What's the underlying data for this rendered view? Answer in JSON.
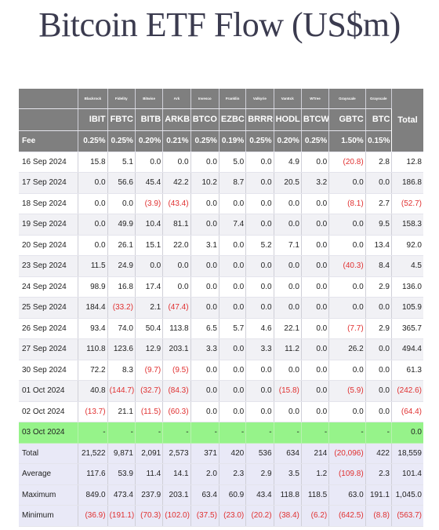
{
  "title": "Bitcoin ETF Flow (US$m)",
  "colors": {
    "header_bg": "#7f7f7f",
    "negative": "#e03030",
    "highlight_row": "#96f38a",
    "stats_bg": "#e9e9f7"
  },
  "header": {
    "issuers": [
      "Blackrock",
      "Fidelity",
      "Bitwise",
      "Ark",
      "Invesco",
      "Franklin",
      "Valkyrie",
      "VanEck",
      "WTree",
      "Grayscale",
      "Grayscale"
    ],
    "total_label": "Total",
    "tickers": [
      "IBIT",
      "FBTC",
      "BITB",
      "ARKB",
      "BTCO",
      "EZBC",
      "BRRR",
      "HODL",
      "BTCW",
      "GBTC",
      "BTC"
    ],
    "fee_label": "Fee",
    "fees": [
      "0.25%",
      "0.25%",
      "0.20%",
      "0.21%",
      "0.25%",
      "0.19%",
      "0.25%",
      "0.20%",
      "0.25%",
      "1.50%",
      "0.15%"
    ]
  },
  "rows": [
    {
      "date": "16 Sep 2024",
      "values": [
        "15.8",
        "5.1",
        "0.0",
        "0.0",
        "0.0",
        "5.0",
        "0.0",
        "4.9",
        "0.0",
        "(20.8)",
        "2.8"
      ],
      "total": "12.8"
    },
    {
      "date": "17 Sep 2024",
      "values": [
        "0.0",
        "56.6",
        "45.4",
        "42.2",
        "10.2",
        "8.7",
        "0.0",
        "20.5",
        "3.2",
        "0.0",
        "0.0"
      ],
      "total": "186.8"
    },
    {
      "date": "18 Sep 2024",
      "values": [
        "0.0",
        "0.0",
        "(3.9)",
        "(43.4)",
        "0.0",
        "0.0",
        "0.0",
        "0.0",
        "0.0",
        "(8.1)",
        "2.7"
      ],
      "total": "(52.7)"
    },
    {
      "date": "19 Sep 2024",
      "values": [
        "0.0",
        "49.9",
        "10.4",
        "81.1",
        "0.0",
        "7.4",
        "0.0",
        "0.0",
        "0.0",
        "0.0",
        "9.5"
      ],
      "total": "158.3"
    },
    {
      "date": "20 Sep 2024",
      "values": [
        "0.0",
        "26.1",
        "15.1",
        "22.0",
        "3.1",
        "0.0",
        "5.2",
        "7.1",
        "0.0",
        "0.0",
        "13.4"
      ],
      "total": "92.0"
    },
    {
      "date": "23 Sep 2024",
      "values": [
        "11.5",
        "24.9",
        "0.0",
        "0.0",
        "0.0",
        "0.0",
        "0.0",
        "0.0",
        "0.0",
        "(40.3)",
        "8.4"
      ],
      "total": "4.5"
    },
    {
      "date": "24 Sep 2024",
      "values": [
        "98.9",
        "16.8",
        "17.4",
        "0.0",
        "0.0",
        "0.0",
        "0.0",
        "0.0",
        "0.0",
        "0.0",
        "2.9"
      ],
      "total": "136.0"
    },
    {
      "date": "25 Sep 2024",
      "values": [
        "184.4",
        "(33.2)",
        "2.1",
        "(47.4)",
        "0.0",
        "0.0",
        "0.0",
        "0.0",
        "0.0",
        "0.0",
        "0.0"
      ],
      "total": "105.9"
    },
    {
      "date": "26 Sep 2024",
      "values": [
        "93.4",
        "74.0",
        "50.4",
        "113.8",
        "6.5",
        "5.7",
        "4.6",
        "22.1",
        "0.0",
        "(7.7)",
        "2.9"
      ],
      "total": "365.7"
    },
    {
      "date": "27 Sep 2024",
      "values": [
        "110.8",
        "123.6",
        "12.9",
        "203.1",
        "3.3",
        "0.0",
        "3.3",
        "11.2",
        "0.0",
        "26.2",
        "0.0"
      ],
      "total": "494.4"
    },
    {
      "date": "30 Sep 2024",
      "values": [
        "72.2",
        "8.3",
        "(9.7)",
        "(9.5)",
        "0.0",
        "0.0",
        "0.0",
        "0.0",
        "0.0",
        "0.0",
        "0.0"
      ],
      "total": "61.3"
    },
    {
      "date": "01 Oct 2024",
      "values": [
        "40.8",
        "(144.7)",
        "(32.7)",
        "(84.3)",
        "0.0",
        "0.0",
        "0.0",
        "(15.8)",
        "0.0",
        "(5.9)",
        "0.0"
      ],
      "total": "(242.6)"
    },
    {
      "date": "02 Oct 2024",
      "values": [
        "(13.7)",
        "21.1",
        "(11.5)",
        "(60.3)",
        "0.0",
        "0.0",
        "0.0",
        "0.0",
        "0.0",
        "0.0",
        "0.0"
      ],
      "total": "(64.4)"
    },
    {
      "date": "03 Oct 2024",
      "values": [
        "-",
        "-",
        "-",
        "-",
        "-",
        "-",
        "-",
        "-",
        "-",
        "-",
        "-"
      ],
      "total": "0.0",
      "highlight": true
    }
  ],
  "stats": [
    {
      "label": "Total",
      "values": [
        "21,522",
        "9,871",
        "2,091",
        "2,573",
        "371",
        "420",
        "536",
        "634",
        "214",
        "(20,096)",
        "422"
      ],
      "total": "18,559"
    },
    {
      "label": "Average",
      "values": [
        "117.6",
        "53.9",
        "11.4",
        "14.1",
        "2.0",
        "2.3",
        "2.9",
        "3.5",
        "1.2",
        "(109.8)",
        "2.3"
      ],
      "total": "101.4"
    },
    {
      "label": "Maximum",
      "values": [
        "849.0",
        "473.4",
        "237.9",
        "203.1",
        "63.4",
        "60.9",
        "43.4",
        "118.8",
        "118.5",
        "63.0",
        "191.1"
      ],
      "total": "1,045.0"
    },
    {
      "label": "Minimum",
      "values": [
        "(36.9)",
        "(191.1)",
        "(70.3)",
        "(102.0)",
        "(37.5)",
        "(23.0)",
        "(20.2)",
        "(38.4)",
        "(6.2)",
        "(642.5)",
        "(8.8)"
      ],
      "total": "(563.7)"
    }
  ]
}
